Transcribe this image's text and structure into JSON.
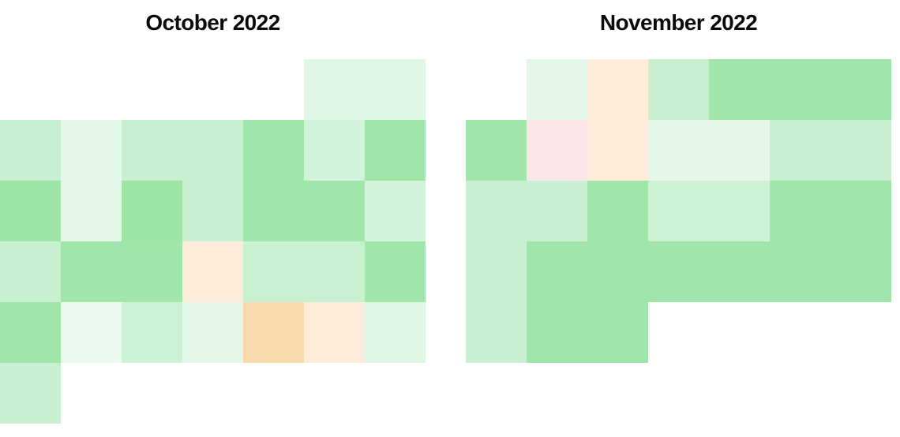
{
  "page": {
    "background": "#ffffff",
    "title_color": "#0a0a0a"
  },
  "chart_data": {
    "type": "heatmap",
    "subtype": "calendar-month-grid",
    "layout": "two month calendars side by side; rows are weeks, 7 weekday columns, weeks start on Monday; empty (null) cells are days outside the month",
    "legend": "none visible; each day cell is filled with a color encoding its value",
    "months": [
      {
        "title": "October 2022",
        "num_days": 31,
        "first_day_column_index": 5,
        "rows": [
          [
            null,
            null,
            null,
            null,
            null,
            "#e0f7e6",
            "#e0f7e6"
          ],
          [
            "#c8efcf",
            "#e4f8e9",
            "#c8efcf",
            "#c8efcf",
            "#a0e6aa",
            "#d2f3d9",
            "#a0e6aa"
          ],
          [
            "#9de5a7",
            "#e4f8e9",
            "#9de5a7",
            "#c8efcf",
            "#a0e6aa",
            "#a0e6aa",
            "#d2f3d9"
          ],
          [
            "#c8efcf",
            "#a0e6aa",
            "#a0e6aa",
            "#fcecd9",
            "#c8f0d1",
            "#c8f0d1",
            "#a0e6aa"
          ],
          [
            "#a0e6aa",
            "#eafaee",
            "#cdf1d5",
            "#e4f8e9",
            "#f8d9ab",
            "#fcecd9",
            "#e0f7e6"
          ],
          [
            "#c8efcf",
            null,
            null,
            null,
            null,
            null,
            null
          ]
        ]
      },
      {
        "title": "November 2022",
        "num_days": 30,
        "first_day_column_index": 1,
        "rows": [
          [
            null,
            "#e2f7e7",
            "#fcecd9",
            "#c8efcf",
            "#a0e6aa",
            "#a0e6aa",
            "#a0e6aa"
          ],
          [
            "#a0e6aa",
            "#fae5e8",
            "#fcecd9",
            "#e3f8e8",
            "#e3f8e8",
            "#c8efcf",
            "#c8efcf"
          ],
          [
            "#c8efcf",
            "#c8efcf",
            "#a0e6aa",
            "#cdf1d5",
            "#cdf1d5",
            "#a0e6aa",
            "#a0e6aa"
          ],
          [
            "#c8efcf",
            "#a0e6aa",
            "#a0e6aa",
            "#a0e6aa",
            "#a0e6aa",
            "#a0e6aa",
            "#a0e6aa"
          ],
          [
            "#c8efcf",
            "#a0e6aa",
            "#a0e6aa",
            null,
            null,
            null,
            null
          ]
        ]
      }
    ]
  }
}
